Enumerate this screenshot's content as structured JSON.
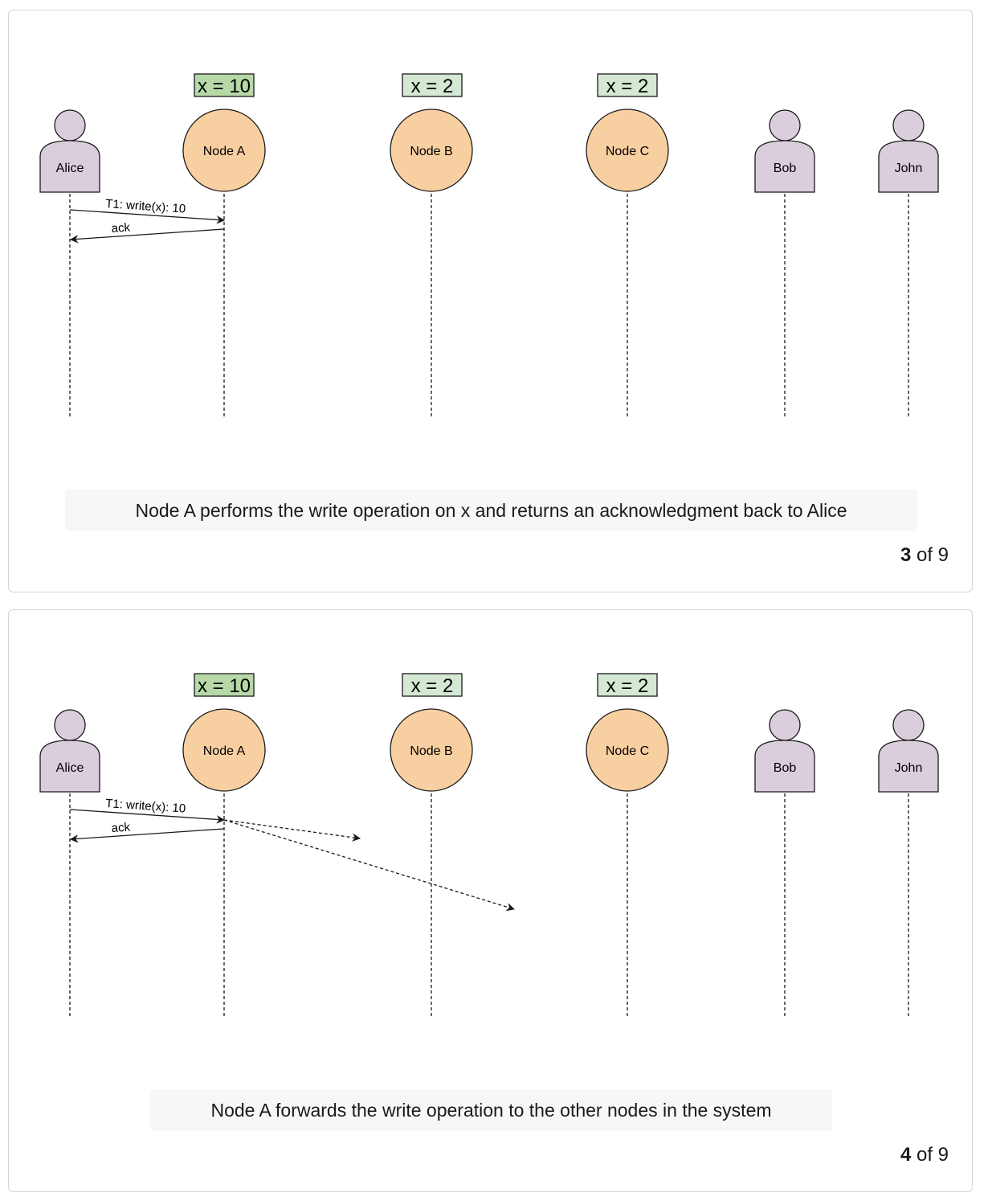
{
  "colors": {
    "node_fill": "#f8cfa0",
    "actor_fill": "#dacddc",
    "state_updated_fill": "#b7d9a8",
    "state_fill": "#d5e8d4",
    "stroke": "#1a1a1a"
  },
  "actors": [
    "Alice",
    "Bob",
    "John"
  ],
  "nodes": [
    "Node A",
    "Node B",
    "Node C"
  ],
  "slides": [
    {
      "states": [
        "x = 10",
        "x = 2",
        "x = 2"
      ],
      "messages": [
        {
          "from": "Alice",
          "to": "Node A",
          "label": "T1: write(x): 10"
        },
        {
          "from": "Node A",
          "to": "Alice",
          "label": "ack"
        }
      ],
      "caption": "Node A performs the write operation on x and returns an acknowledgment back to Alice",
      "counter": {
        "current": "3",
        "rest": " of 9"
      }
    },
    {
      "states": [
        "x = 10",
        "x = 2",
        "x = 2"
      ],
      "messages": [
        {
          "from": "Alice",
          "to": "Node A",
          "label": "T1: write(x): 10"
        },
        {
          "from": "Node A",
          "to": "Alice",
          "label": "ack"
        },
        {
          "from": "Node A",
          "to": "Node B",
          "label": "",
          "style": "dashed",
          "in_flight": true
        },
        {
          "from": "Node A",
          "to": "Node C",
          "label": "",
          "style": "dashed",
          "in_flight": true
        }
      ],
      "caption": "Node A forwards the write operation to the other nodes in the system",
      "counter": {
        "current": "4",
        "rest": " of 9"
      }
    }
  ]
}
